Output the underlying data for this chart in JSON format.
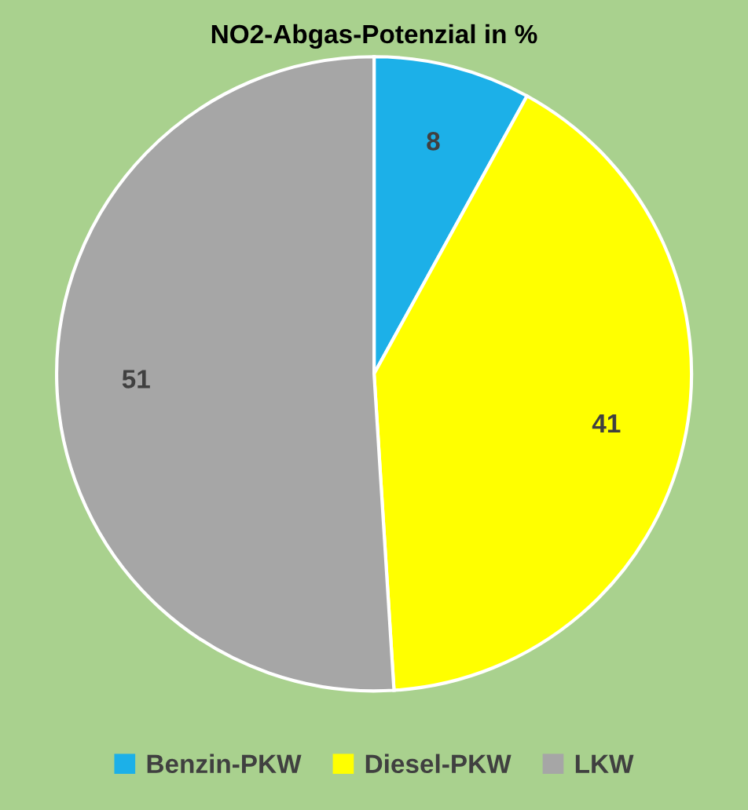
{
  "chart_data": {
    "type": "pie",
    "title": "NO2-Abgas-Potenzial in %",
    "categories": [
      "Benzin-PKW",
      "Diesel-PKW",
      "LKW"
    ],
    "values": [
      8,
      41,
      51
    ],
    "colors": [
      "#1cb0e8",
      "#ffff00",
      "#a6a6a6"
    ],
    "data_labels": true,
    "legend": "bottom"
  }
}
